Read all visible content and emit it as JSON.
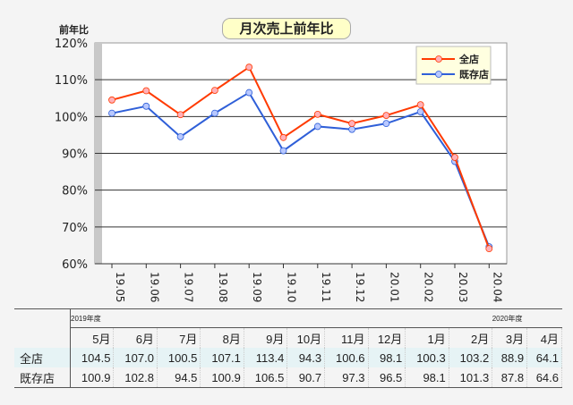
{
  "chart_data": {
    "type": "line",
    "title": "月次売上前年比",
    "ylabel": "前年比",
    "ylim": [
      60,
      120
    ],
    "yticks": [
      "60%",
      "70%",
      "80%",
      "90%",
      "100%",
      "110%",
      "120%"
    ],
    "categories": [
      "19.05",
      "19.06",
      "19.07",
      "19.08",
      "19.09",
      "19.10",
      "19.11",
      "19.12",
      "20.01",
      "20.02",
      "20.03",
      "20.04"
    ],
    "series": [
      {
        "name": "全店",
        "color": "#ff3a00",
        "values": [
          104.5,
          107.0,
          100.5,
          107.1,
          113.4,
          94.3,
          100.6,
          98.1,
          100.3,
          103.2,
          88.9,
          64.1
        ]
      },
      {
        "name": "既存店",
        "color": "#2f5fd8",
        "values": [
          100.9,
          102.8,
          94.5,
          100.9,
          106.5,
          90.7,
          97.3,
          96.5,
          98.1,
          101.3,
          87.8,
          64.6
        ]
      }
    ],
    "legend": "top-right",
    "grid": true
  },
  "table": {
    "fy1": "2019年度",
    "fy2": "2020年度",
    "months": [
      "5月",
      "6月",
      "7月",
      "8月",
      "9月",
      "10月",
      "11月",
      "12月",
      "1月",
      "2月",
      "3月",
      "4月"
    ],
    "rows": [
      {
        "label": "全店",
        "values": [
          "104.5",
          "107.0",
          "100.5",
          "107.1",
          "113.4",
          "94.3",
          "100.6",
          "98.1",
          "100.3",
          "103.2",
          "88.9",
          "64.1"
        ]
      },
      {
        "label": "既存店",
        "values": [
          "100.9",
          "102.8",
          "94.5",
          "100.9",
          "106.5",
          "90.7",
          "97.3",
          "96.5",
          "98.1",
          "101.3",
          "87.8",
          "64.6"
        ]
      }
    ]
  }
}
